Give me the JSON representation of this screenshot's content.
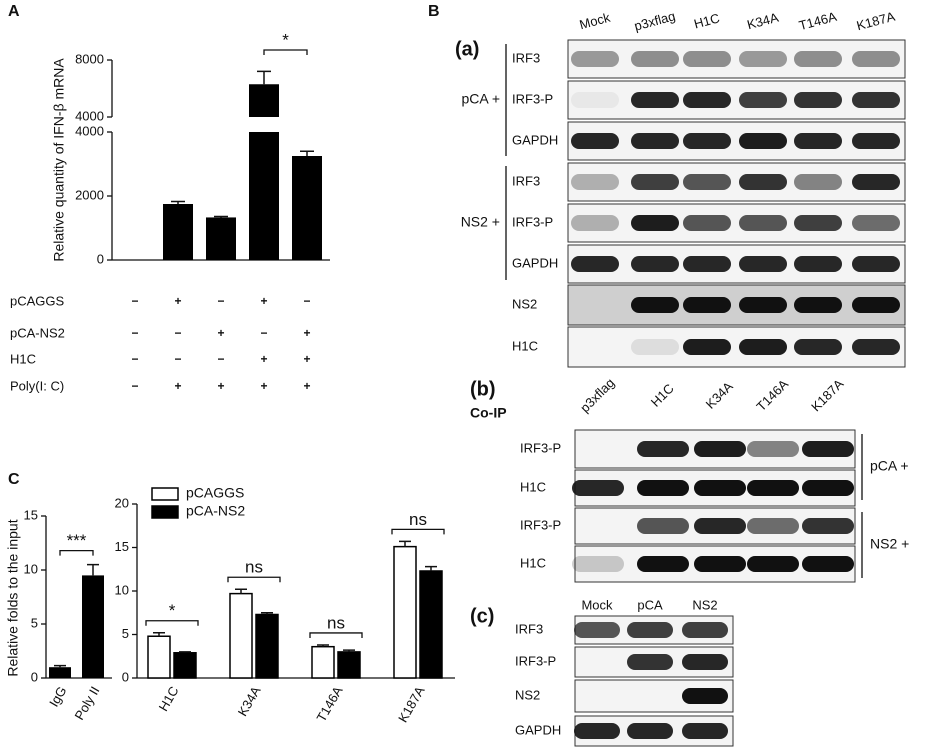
{
  "panel_labels": [
    "A",
    "B",
    "C"
  ],
  "chart_data": [
    {
      "type": "bar",
      "y_label": "Relative quantity of IFN-β mRNA",
      "categories": [
        null,
        null,
        null,
        null,
        null
      ],
      "values": [
        0,
        1750,
        1330,
        6300,
        3250
      ],
      "errors": [
        0,
        80,
        30,
        900,
        150
      ],
      "color": "#000000",
      "segments": [
        {
          "ylim": [
            0,
            4000
          ],
          "yticks": [
            0,
            2000,
            4000
          ]
        },
        {
          "ylim": [
            4000,
            8000
          ],
          "yticks": [
            4000,
            8000
          ]
        }
      ],
      "annotations": [
        {
          "text": "*",
          "between": [
            3,
            4
          ]
        }
      ],
      "conditions": [
        {
          "label": "pCAGGS",
          "signs": [
            "−",
            "+",
            "−",
            "+",
            "−"
          ]
        },
        {
          "label": "pCA-NS2",
          "signs": [
            "−",
            "−",
            "+",
            "−",
            "+"
          ]
        },
        {
          "label": "H1C",
          "signs": [
            "−",
            "−",
            "−",
            "+",
            "+"
          ]
        },
        {
          "label": "Poly(I: C)",
          "signs": [
            "−",
            "+",
            "+",
            "+",
            "+"
          ]
        }
      ]
    },
    {
      "type": "bar",
      "y_label": "Relative folds to the input",
      "categories": [
        "IgG",
        "Poly II"
      ],
      "values": [
        1.0,
        9.5
      ],
      "errors": [
        0.15,
        1.0
      ],
      "color": "#000000",
      "ylim": [
        0,
        15
      ],
      "yticks": [
        0,
        5,
        10,
        15
      ],
      "annotations": [
        {
          "text": "***",
          "between": [
            0,
            1
          ]
        }
      ]
    },
    {
      "type": "grouped-bar",
      "categories": [
        "H1C",
        "K34A",
        "T146A",
        "K187A"
      ],
      "series": [
        {
          "name": "pCAGGS",
          "color": "#ffffff",
          "values": [
            4.8,
            9.7,
            3.6,
            15.1
          ],
          "errors": [
            0.4,
            0.5,
            0.2,
            0.6
          ]
        },
        {
          "name": "pCA-NS2",
          "color": "#000000",
          "values": [
            2.9,
            7.3,
            3.0,
            12.3
          ],
          "errors": [
            0.1,
            0.2,
            0.2,
            0.5
          ]
        }
      ],
      "ylim": [
        0,
        20
      ],
      "yticks": [
        0,
        5,
        10,
        15,
        20
      ],
      "annotations": [
        "*",
        "ns",
        "ns",
        "ns"
      ]
    }
  ],
  "blots": [
    {
      "label": "(a)",
      "lanes": [
        "Mock",
        "p3xflag",
        "H1C",
        "K34A",
        "T146A",
        "K187A"
      ],
      "rows": [
        "IRF3",
        "IRF3-P",
        "GAPDH",
        "IRF3",
        "IRF3-P",
        "GAPDH",
        "NS2",
        "H1C"
      ],
      "groups": [
        "pCA +",
        "NS2 +"
      ]
    },
    {
      "label": "(b)",
      "title": "Co-IP",
      "lanes": [
        "p3xflag",
        "H1C",
        "K34A",
        "T146A",
        "K187A"
      ],
      "rows": [
        "IRF3-P",
        "H1C",
        "IRF3-P",
        "H1C"
      ],
      "groups": [
        "pCA +",
        "NS2 +"
      ]
    },
    {
      "label": "(c)",
      "lanes": [
        "Mock",
        "pCA",
        "NS2"
      ],
      "rows": [
        "IRF3",
        "IRF3-P",
        "NS2",
        "GAPDH"
      ]
    }
  ]
}
